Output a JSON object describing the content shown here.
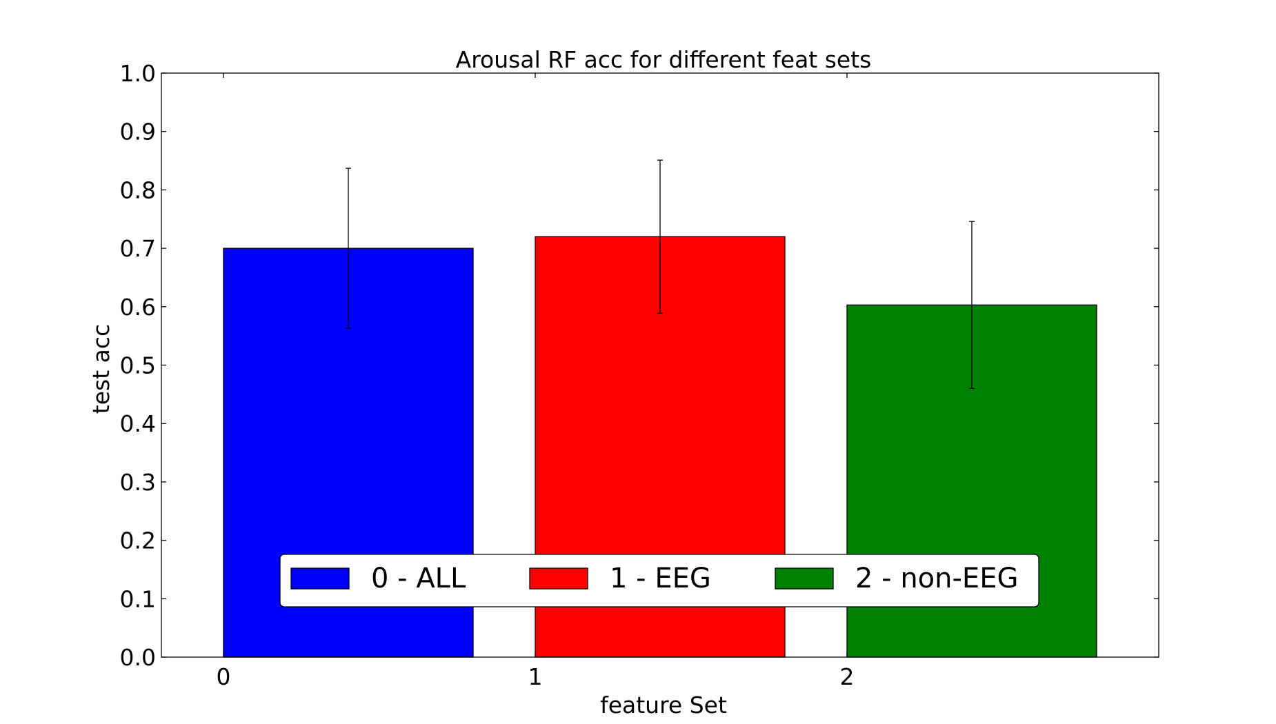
{
  "chart_data": {
    "type": "bar",
    "title": "Arousal RF acc for different feat sets",
    "xlabel": "feature Set",
    "ylabel": "test acc",
    "ylim": [
      0.0,
      1.0
    ],
    "yticks": [
      "0.0",
      "0.1",
      "0.2",
      "0.3",
      "0.4",
      "0.5",
      "0.6",
      "0.7",
      "0.8",
      "0.9",
      "1.0"
    ],
    "xticks": [
      "0",
      "1",
      "2"
    ],
    "grid": false,
    "legend_placement": "lower center",
    "series": [
      {
        "name": "0 - ALL",
        "x": 0,
        "value": 0.7,
        "error": 0.137,
        "color": "#0000ff"
      },
      {
        "name": "1 - EEG",
        "x": 1,
        "value": 0.72,
        "error": 0.131,
        "color": "#ff0000"
      },
      {
        "name": "2 - non-EEG",
        "x": 2,
        "value": 0.603,
        "error": 0.143,
        "color": "#008000"
      }
    ]
  }
}
